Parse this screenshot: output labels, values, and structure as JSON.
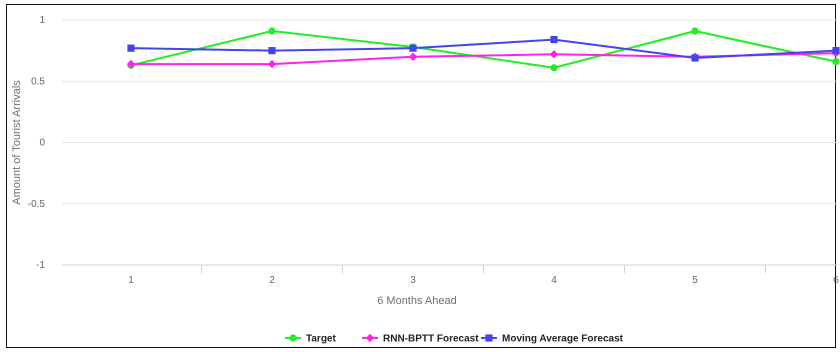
{
  "chart_data": {
    "type": "line",
    "title": "",
    "xlabel": "6 Months Ahead",
    "ylabel": "Amount of Tourist Arrivals",
    "categories": [
      "1",
      "2",
      "3",
      "4",
      "5",
      "6"
    ],
    "ylim": [
      -1,
      1
    ],
    "yticks": [
      1,
      0.5,
      0,
      -0.5,
      -1
    ],
    "ytick_labels": [
      "1",
      "0.5",
      "0",
      "-0.5",
      "-1"
    ],
    "grid": "horizontal",
    "legend_position": "bottom-center",
    "series": [
      {
        "name": "Target",
        "color": "#22ee22",
        "marker": "circle",
        "values": [
          0.63,
          0.91,
          0.78,
          0.61,
          0.91,
          0.66
        ]
      },
      {
        "name": "RNN-BPTT Forecast",
        "color": "#ff22ee",
        "marker": "diamond",
        "values": [
          0.64,
          0.64,
          0.7,
          0.72,
          0.7,
          0.73
        ]
      },
      {
        "name": "Moving Average Forecast",
        "color": "#4444ee",
        "marker": "square",
        "values": [
          0.77,
          0.75,
          0.77,
          0.84,
          0.69,
          0.75
        ]
      }
    ]
  }
}
